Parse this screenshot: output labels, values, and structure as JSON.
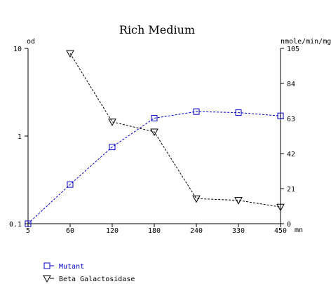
{
  "chart_data": {
    "type": "line",
    "title": "Rich Medium",
    "x": {
      "label": "mn",
      "ticks": [
        5,
        60,
        120,
        180,
        240,
        330,
        450
      ],
      "tick_labels": [
        "5",
        "60",
        "120",
        "180",
        "240",
        "330",
        "450"
      ]
    },
    "y_left": {
      "label": "od",
      "scale": "log",
      "range": [
        0.1,
        10
      ],
      "ticks": [
        0.1,
        1,
        10
      ],
      "tick_labels": [
        "0.1",
        "1",
        "10"
      ]
    },
    "y_right": {
      "label": "nmole/min/mg",
      "scale": "linear",
      "range": [
        0,
        105
      ],
      "ticks": [
        0,
        21,
        42,
        63,
        84,
        105
      ],
      "tick_labels": [
        "0",
        "21",
        "42",
        "63",
        "84",
        "105"
      ]
    },
    "series": [
      {
        "name": "Mutant",
        "axis": "left",
        "marker": "square",
        "color": "#0000cc",
        "x": [
          5,
          60,
          120,
          180,
          240,
          330,
          450
        ],
        "values": [
          0.1,
          0.28,
          0.75,
          1.6,
          1.9,
          1.85,
          1.7
        ]
      },
      {
        "name": "Beta Galactosidase",
        "axis": "right",
        "marker": "triangle-down",
        "color": "#000000",
        "x": [
          60,
          120,
          180,
          240,
          330,
          450
        ],
        "values": [
          102,
          61,
          55,
          15,
          14,
          10
        ]
      }
    ],
    "grid": false,
    "legend": "bottom-left"
  }
}
